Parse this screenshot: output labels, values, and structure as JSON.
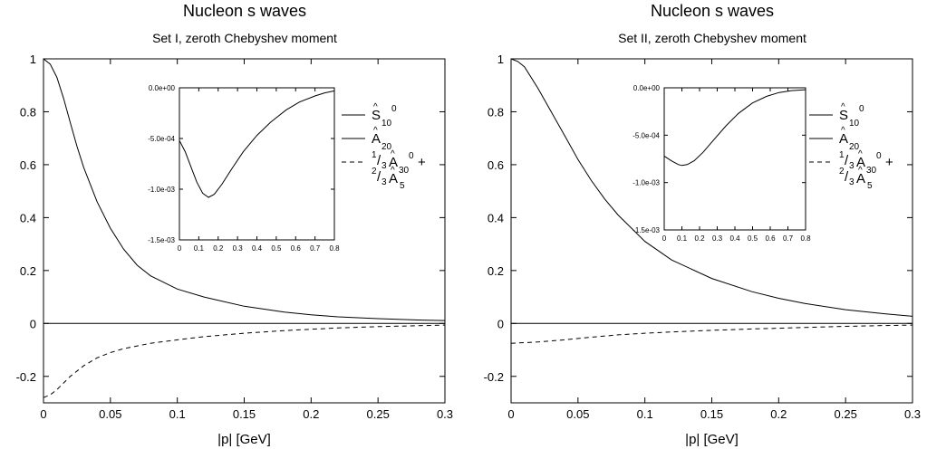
{
  "chart_data": [
    {
      "type": "line",
      "title": "Nucleon s waves",
      "subtitle": "Set I, zeroth Chebyshev moment",
      "xlabel": "|p| [GeV]",
      "ylabel": "",
      "xlim": [
        0,
        0.3
      ],
      "ylim": [
        -0.3,
        1
      ],
      "xticks": [
        "0",
        "0.05",
        "0.1",
        "0.15",
        "0.2",
        "0.25",
        "0.3"
      ],
      "yticks": [
        "-0.2",
        "0",
        "0.2",
        "0.4",
        "0.6",
        "0.8",
        "1"
      ],
      "grid": false,
      "legend_position": "right",
      "series": [
        {
          "style": "solid",
          "x": [
            0,
            0.005,
            0.01,
            0.015,
            0.02,
            0.025,
            0.03,
            0.04,
            0.05,
            0.06,
            0.07,
            0.08,
            0.1,
            0.12,
            0.15,
            0.18,
            0.2,
            0.22,
            0.25,
            0.28,
            0.3
          ],
          "y": [
            1.0,
            0.98,
            0.93,
            0.85,
            0.76,
            0.67,
            0.59,
            0.46,
            0.36,
            0.28,
            0.22,
            0.18,
            0.13,
            0.1,
            0.065,
            0.043,
            0.033,
            0.025,
            0.018,
            0.013,
            0.011
          ]
        },
        {
          "style": "solid",
          "x": [
            0,
            0.3
          ],
          "y": [
            0,
            0
          ]
        },
        {
          "style": "dashed",
          "x": [
            0,
            0.005,
            0.01,
            0.02,
            0.03,
            0.04,
            0.05,
            0.06,
            0.08,
            0.1,
            0.12,
            0.15,
            0.18,
            0.2,
            0.22,
            0.25,
            0.3
          ],
          "y": [
            -0.28,
            -0.27,
            -0.25,
            -0.2,
            -0.16,
            -0.13,
            -0.11,
            -0.095,
            -0.075,
            -0.062,
            -0.05,
            -0.037,
            -0.027,
            -0.022,
            -0.017,
            -0.012,
            -0.006
          ]
        }
      ],
      "legend": [
        {
          "style": "solid",
          "base": "S",
          "sup": "0",
          "sub": "10"
        },
        {
          "style": "solid",
          "base": "A",
          "sup": "",
          "sub": "20"
        },
        {
          "style": "dashed",
          "pre_sup": "1",
          "pre_sub": "3",
          "base": "A",
          "sup": "0",
          "sub": "30",
          "suffix": "+",
          "line2_pre_sup": "2",
          "line2_pre_sub": "3",
          "line2_base": "A",
          "line2_sub": "5"
        }
      ],
      "inset": {
        "type": "line",
        "xlim": [
          0,
          0.8
        ],
        "ylim": [
          -0.0015,
          0
        ],
        "xticks": [
          "0",
          "0.1",
          "0.2",
          "0.3",
          "0.4",
          "0.5",
          "0.6",
          "0.7",
          "0.8"
        ],
        "yticks": [
          "-1.5e-03",
          "-1.0e-03",
          "-5.0e-04",
          "0.0e+00"
        ],
        "series": [
          {
            "style": "solid",
            "x": [
              0,
              0.03,
              0.06,
              0.09,
              0.12,
              0.15,
              0.18,
              0.22,
              0.27,
              0.33,
              0.4,
              0.47,
              0.55,
              0.62,
              0.7,
              0.75,
              0.8
            ],
            "y": [
              -0.00052,
              -0.00063,
              -0.00078,
              -0.00093,
              -0.00104,
              -0.00108,
              -0.00105,
              -0.00095,
              -0.0008,
              -0.00063,
              -0.00047,
              -0.00034,
              -0.00022,
              -0.00014,
              -8e-05,
              -5e-05,
              -3e-05
            ]
          }
        ]
      }
    },
    {
      "type": "line",
      "title": "Nucleon s waves",
      "subtitle": "Set II, zeroth Chebyshev moment",
      "xlabel": "|p| [GeV]",
      "ylabel": "",
      "xlim": [
        0,
        0.3
      ],
      "ylim": [
        -0.3,
        1
      ],
      "xticks": [
        "0",
        "0.05",
        "0.1",
        "0.15",
        "0.2",
        "0.25",
        "0.3"
      ],
      "yticks": [
        "-0.2",
        "0",
        "0.2",
        "0.4",
        "0.6",
        "0.8",
        "1"
      ],
      "grid": false,
      "legend_position": "right",
      "series": [
        {
          "style": "solid",
          "x": [
            0,
            0.005,
            0.01,
            0.02,
            0.03,
            0.04,
            0.05,
            0.06,
            0.07,
            0.08,
            0.1,
            0.12,
            0.15,
            0.18,
            0.2,
            0.22,
            0.25,
            0.28,
            0.3
          ],
          "y": [
            1.0,
            0.99,
            0.97,
            0.89,
            0.8,
            0.71,
            0.62,
            0.54,
            0.47,
            0.41,
            0.31,
            0.24,
            0.17,
            0.12,
            0.095,
            0.075,
            0.052,
            0.036,
            0.027
          ]
        },
        {
          "style": "solid",
          "x": [
            0,
            0.3
          ],
          "y": [
            0,
            0
          ]
        },
        {
          "style": "dashed",
          "x": [
            0,
            0.02,
            0.04,
            0.06,
            0.08,
            0.1,
            0.12,
            0.15,
            0.18,
            0.2,
            0.22,
            0.25,
            0.28,
            0.3
          ],
          "y": [
            -0.075,
            -0.07,
            -0.062,
            -0.052,
            -0.043,
            -0.037,
            -0.032,
            -0.026,
            -0.021,
            -0.018,
            -0.015,
            -0.011,
            -0.008,
            -0.006
          ]
        }
      ],
      "legend": [
        {
          "style": "solid",
          "base": "S",
          "sup": "0",
          "sub": "10"
        },
        {
          "style": "solid",
          "base": "A",
          "sup": "",
          "sub": "20"
        },
        {
          "style": "dashed",
          "pre_sup": "1",
          "pre_sub": "3",
          "base": "A",
          "sup": "0",
          "sub": "30",
          "suffix": "+",
          "line2_pre_sup": "2",
          "line2_pre_sub": "3",
          "line2_base": "A",
          "line2_sub": "5"
        }
      ],
      "inset": {
        "type": "line",
        "xlim": [
          0,
          0.8
        ],
        "ylim": [
          -0.0015,
          0
        ],
        "xticks": [
          "0",
          "0.1",
          "0.2",
          "0.3",
          "0.4",
          "0.5",
          "0.6",
          "0.7",
          "0.8"
        ],
        "yticks": [
          "-1.5e-03",
          "-1.0e-03",
          "-5.0e-04",
          "0.0e+00"
        ],
        "series": [
          {
            "style": "solid",
            "x": [
              0,
              0.04,
              0.08,
              0.1,
              0.13,
              0.17,
              0.22,
              0.28,
              0.35,
              0.42,
              0.5,
              0.58,
              0.65,
              0.72,
              0.8
            ],
            "y": [
              -0.00072,
              -0.00077,
              -0.00081,
              -0.00082,
              -0.00081,
              -0.00077,
              -0.00068,
              -0.00055,
              -0.0004,
              -0.00027,
              -0.00016,
              -9e-05,
              -5e-05,
              -3e-05,
              -2e-05
            ]
          }
        ]
      }
    }
  ]
}
